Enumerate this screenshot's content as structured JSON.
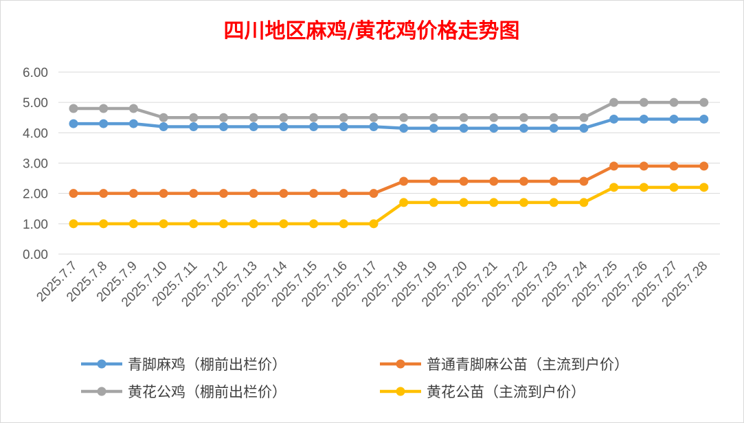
{
  "chart_data": {
    "type": "line",
    "title": "四川地区麻鸡/黄花鸡价格走势图",
    "xlabel": "",
    "ylabel": "",
    "ylim": [
      0,
      6
    ],
    "yticks": [
      "0.00",
      "1.00",
      "2.00",
      "3.00",
      "4.00",
      "5.00",
      "6.00"
    ],
    "grid": "horizontal",
    "legend_position": "bottom",
    "categories": [
      "2025.7.7",
      "2025.7.8",
      "2025.7.9",
      "2025.7.10",
      "2025.7.11",
      "2025.7.12",
      "2025.7.13",
      "2025.7.14",
      "2025.7.15",
      "2025.7.16",
      "2025.7.17",
      "2025.7.18",
      "2025.7.19",
      "2025.7.20",
      "2025.7.21",
      "2025.7.22",
      "2025.7.23",
      "2025.7.24",
      "2025.7.25",
      "2025.7.26",
      "2025.7.27",
      "2025.7.28"
    ],
    "series": [
      {
        "name": "青脚麻鸡（棚前出栏价）",
        "color": "#5b9bd5",
        "values": [
          4.3,
          4.3,
          4.3,
          4.2,
          4.2,
          4.2,
          4.2,
          4.2,
          4.2,
          4.2,
          4.2,
          4.15,
          4.15,
          4.15,
          4.15,
          4.15,
          4.15,
          4.15,
          4.45,
          4.45,
          4.45,
          4.45
        ]
      },
      {
        "name": "普通青脚麻公苗（主流到户价）",
        "color": "#ed7d31",
        "values": [
          2.0,
          2.0,
          2.0,
          2.0,
          2.0,
          2.0,
          2.0,
          2.0,
          2.0,
          2.0,
          2.0,
          2.4,
          2.4,
          2.4,
          2.4,
          2.4,
          2.4,
          2.4,
          2.9,
          2.9,
          2.9,
          2.9
        ]
      },
      {
        "name": "黄花公鸡（棚前出栏价）",
        "color": "#a5a5a5",
        "values": [
          4.8,
          4.8,
          4.8,
          4.5,
          4.5,
          4.5,
          4.5,
          4.5,
          4.5,
          4.5,
          4.5,
          4.5,
          4.5,
          4.5,
          4.5,
          4.5,
          4.5,
          4.5,
          5.0,
          5.0,
          5.0,
          5.0
        ]
      },
      {
        "name": "黄花公苗（主流到户价）",
        "color": "#ffc000",
        "values": [
          1.0,
          1.0,
          1.0,
          1.0,
          1.0,
          1.0,
          1.0,
          1.0,
          1.0,
          1.0,
          1.0,
          1.7,
          1.7,
          1.7,
          1.7,
          1.7,
          1.7,
          1.7,
          2.2,
          2.2,
          2.2,
          2.2
        ]
      }
    ]
  }
}
